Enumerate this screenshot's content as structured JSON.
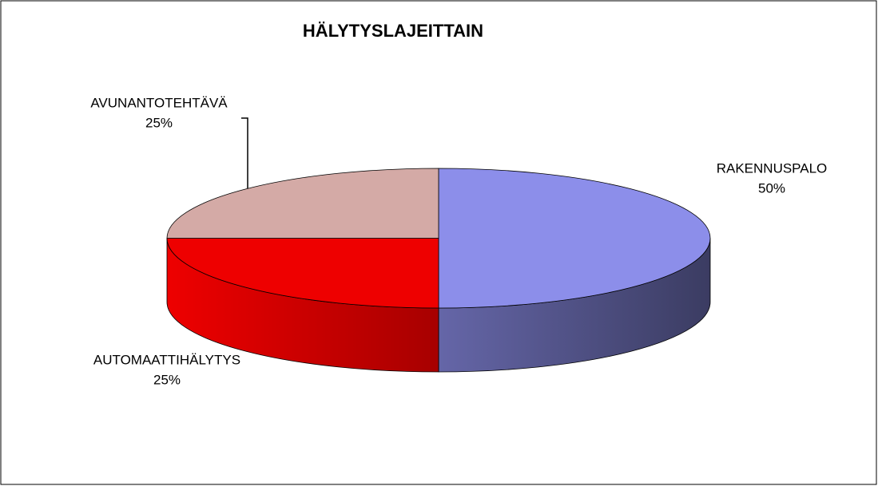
{
  "chart_data": {
    "type": "pie",
    "title": "HÄLYTYSLAJEITTAIN",
    "categories": [
      "RAKENNUSPALO",
      "AUTOMAATTIHÄLYTYS",
      "AVUNANTOTEHTÄVÄ"
    ],
    "values": [
      50,
      25,
      25
    ],
    "value_labels": [
      "50%",
      "25%",
      "25%"
    ],
    "colors": [
      "#8c8eea",
      "#ee0000",
      "#d4aaa6"
    ]
  }
}
